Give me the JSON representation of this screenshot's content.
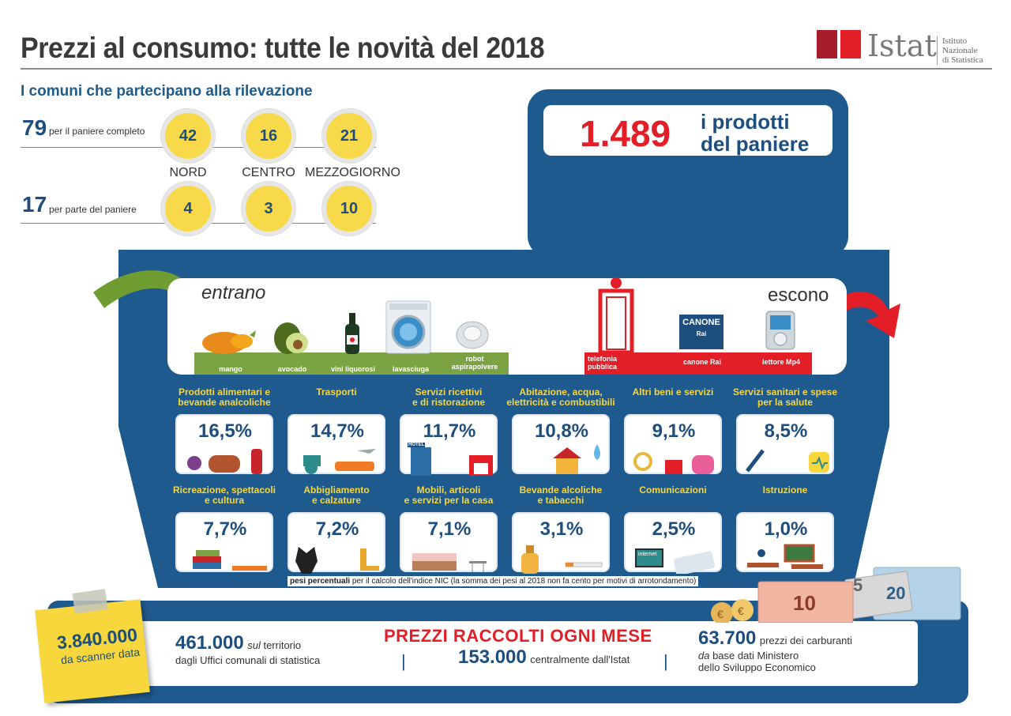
{
  "title": "Prezzi al consumo: tutte le novità del 2018",
  "logo": {
    "name": "Istat",
    "subtitle_line1": "Istituto Nazionale",
    "subtitle_line2": "di Statistica"
  },
  "comuni": {
    "title": "I comuni che partecipano alla rilevazione",
    "completo": {
      "value": "79",
      "label": "per il  paniere completo"
    },
    "parte": {
      "value": "17",
      "label": "per parte del paniere"
    },
    "regions": [
      {
        "name": "NORD",
        "completo": "42",
        "parte": "4"
      },
      {
        "name": "CENTRO",
        "completo": "16",
        "parte": "3"
      },
      {
        "name": "MEZZOGIORNO",
        "completo": "21",
        "parte": "10"
      }
    ]
  },
  "paniere": {
    "value": "1.489",
    "label_line1": "i prodotti",
    "label_line2": "del paniere"
  },
  "entrano": {
    "label": "entrano",
    "items": [
      {
        "label": "mango",
        "icon": "mango-icon"
      },
      {
        "label": "avocado",
        "icon": "avocado-icon"
      },
      {
        "label": "vini liquorosi",
        "icon": "wine-bottle-icon"
      },
      {
        "label": "lavasciuga",
        "icon": "washer-dryer-icon"
      },
      {
        "label_line1": "robot",
        "label_line2": "aspirapolvere",
        "icon": "robot-vacuum-icon"
      }
    ]
  },
  "escono": {
    "label": "escono",
    "items": [
      {
        "label_line1": "telefonia",
        "label_line2": "pubblica",
        "icon": "phone-booth-icon"
      },
      {
        "label": "canone Rai",
        "icon": "canone-rai-icon",
        "badge_text": "CANONE",
        "badge_sub": "Rai"
      },
      {
        "label": "lettore Mp4",
        "icon": "mp4-player-icon"
      }
    ]
  },
  "categories": [
    {
      "title_line1": "Prodotti alimentari e",
      "title_line2": "bevande analcoliche",
      "value": "16,5%"
    },
    {
      "title_line1": "Trasporti",
      "title_line2": "",
      "value": "14,7%"
    },
    {
      "title_line1": "Servizi ricettivi",
      "title_line2": "e di ristorazione",
      "value": "11,7%",
      "hotel_sign": "HOTEL"
    },
    {
      "title_line1": "Abitazione, acqua,",
      "title_line2": "elettricità e combustibili",
      "value": "10,8%"
    },
    {
      "title_line1": "Altri beni e servizi",
      "title_line2": "",
      "value": "9,1%"
    },
    {
      "title_line1": "Servizi sanitari e spese",
      "title_line2": "per la salute",
      "value": "8,5%"
    },
    {
      "title_line1": "Ricreazione, spettacoli",
      "title_line2": "e cultura",
      "value": "7,7%"
    },
    {
      "title_line1": "Abbigliamento",
      "title_line2": "e calzature",
      "value": "7,2%"
    },
    {
      "title_line1": "Mobili, articoli",
      "title_line2": "e servizi per la casa",
      "value": "7,1%"
    },
    {
      "title_line1": "Bevande alcoliche",
      "title_line2": "e tabacchi",
      "value": "3,1%"
    },
    {
      "title_line1": "Comunicazioni",
      "title_line2": "",
      "value": "2,5%",
      "internet_label": "internet"
    },
    {
      "title_line1": "Istruzione",
      "title_line2": "",
      "value": "1,0%"
    }
  ],
  "note": {
    "bold": "pesi percentuali",
    "text": " per il calcolo dell'indice NIC (la somma  dei pesi al 2018  non fa cento per motivi di  arrotondamento)"
  },
  "prezzi": {
    "title": "PREZZI RACCOLTI OGNI MESE",
    "scanner": {
      "value": "3.840.000",
      "label": "da scanner data"
    },
    "territorio": {
      "value": "461.000",
      "label_italic": "sul",
      "label_rest": " territorio",
      "label_line2": "dagli Uffici comunali di statistica"
    },
    "istat": {
      "value": "153.000",
      "label": "centralmente dall'Istat"
    },
    "carburanti": {
      "value": "63.700",
      "label": "prezzi dei carburanti",
      "label_italic": "da",
      "label_rest": " base dati Ministero",
      "label_line3": "dello Sviluppo Economico"
    },
    "separator": "|",
    "banknotes": [
      "10",
      "5",
      "20"
    ]
  },
  "colors": {
    "navy": "#1f5a8f",
    "red": "#e41e26",
    "yellow": "#f7d73c",
    "green": "#7ba343"
  }
}
